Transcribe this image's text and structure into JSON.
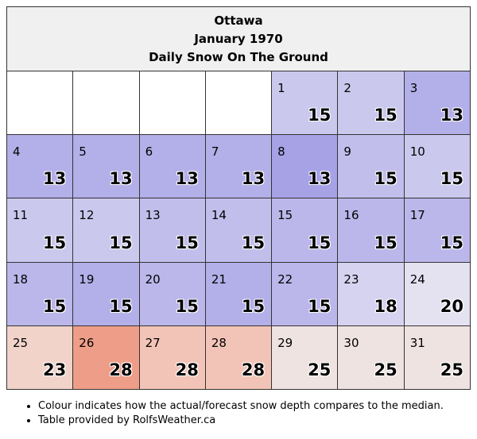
{
  "header": {
    "city": "Ottawa",
    "month": "January 1970",
    "title": "Daily Snow On The Ground"
  },
  "calendar": {
    "leading_blanks": 4,
    "days": [
      {
        "day": "1",
        "value": "15",
        "color": "#cbc8ee"
      },
      {
        "day": "2",
        "value": "15",
        "color": "#cbc8ee"
      },
      {
        "day": "3",
        "value": "13",
        "color": "#b3afe8"
      },
      {
        "day": "4",
        "value": "13",
        "color": "#b3afe8"
      },
      {
        "day": "5",
        "value": "13",
        "color": "#b3afe8"
      },
      {
        "day": "6",
        "value": "13",
        "color": "#b3afe8"
      },
      {
        "day": "7",
        "value": "13",
        "color": "#b3afe8"
      },
      {
        "day": "8",
        "value": "13",
        "color": "#a7a2e6"
      },
      {
        "day": "9",
        "value": "15",
        "color": "#c2beec"
      },
      {
        "day": "10",
        "value": "15",
        "color": "#cbc8ee"
      },
      {
        "day": "11",
        "value": "15",
        "color": "#cbc8ee"
      },
      {
        "day": "12",
        "value": "15",
        "color": "#cbc8ee"
      },
      {
        "day": "13",
        "value": "15",
        "color": "#c2beec"
      },
      {
        "day": "14",
        "value": "15",
        "color": "#c2beec"
      },
      {
        "day": "15",
        "value": "15",
        "color": "#bbb7ea"
      },
      {
        "day": "16",
        "value": "15",
        "color": "#bbb7ea"
      },
      {
        "day": "17",
        "value": "15",
        "color": "#bbb7ea"
      },
      {
        "day": "18",
        "value": "15",
        "color": "#bbb7ea"
      },
      {
        "day": "19",
        "value": "15",
        "color": "#b3afe8"
      },
      {
        "day": "20",
        "value": "15",
        "color": "#bbb7ea"
      },
      {
        "day": "21",
        "value": "15",
        "color": "#b3afe8"
      },
      {
        "day": "22",
        "value": "15",
        "color": "#bbb7ea"
      },
      {
        "day": "23",
        "value": "18",
        "color": "#d5d3f0"
      },
      {
        "day": "24",
        "value": "20",
        "color": "#e4e2f1"
      },
      {
        "day": "25",
        "value": "23",
        "color": "#f1d3ca"
      },
      {
        "day": "26",
        "value": "28",
        "color": "#ee9e88"
      },
      {
        "day": "27",
        "value": "28",
        "color": "#f2c4b7"
      },
      {
        "day": "28",
        "value": "28",
        "color": "#f2c4b7"
      },
      {
        "day": "29",
        "value": "25",
        "color": "#efe3e1"
      },
      {
        "day": "30",
        "value": "25",
        "color": "#efe3e1"
      },
      {
        "day": "31",
        "value": "25",
        "color": "#efe3e1"
      }
    ]
  },
  "notes": [
    "Colour indicates how the actual/forecast snow depth compares to the median.",
    "Table provided by RolfsWeather.ca"
  ]
}
